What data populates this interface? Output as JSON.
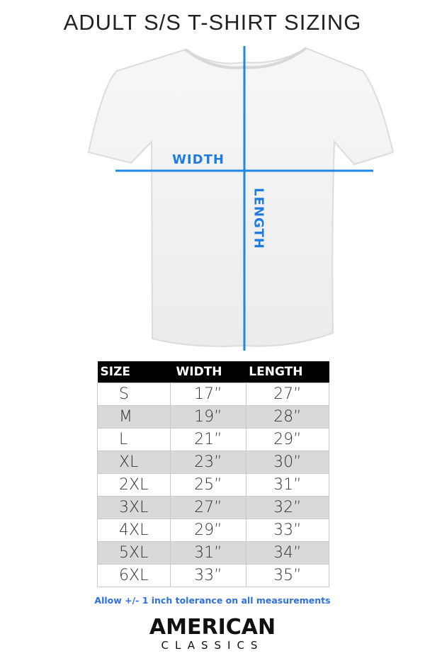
{
  "title": "ADULT S/S T-SHIRT SIZING",
  "diagram": {
    "width_label": "WIDTH",
    "length_label": "LENGTH",
    "line_color": "#1e88e5"
  },
  "table": {
    "headers": [
      "SIZE",
      "WIDTH",
      "LENGTH"
    ],
    "rows": [
      {
        "size": "S",
        "width": "17”",
        "length": "27”"
      },
      {
        "size": "M",
        "width": "19”",
        "length": "28”"
      },
      {
        "size": "L",
        "width": "21”",
        "length": "29”"
      },
      {
        "size": "XL",
        "width": "23”",
        "length": "30”"
      },
      {
        "size": "2XL",
        "width": "25”",
        "length": "31”"
      },
      {
        "size": "3XL",
        "width": "27”",
        "length": "32”"
      },
      {
        "size": "4XL",
        "width": "29”",
        "length": "33”"
      },
      {
        "size": "5XL",
        "width": "31”",
        "length": "34”"
      },
      {
        "size": "6XL",
        "width": "33”",
        "length": "35”"
      }
    ]
  },
  "note": "Allow +/- 1 inch tolerance on all measurements",
  "logo": {
    "line1": "AMERICAN",
    "line2": "CLASSICS"
  }
}
